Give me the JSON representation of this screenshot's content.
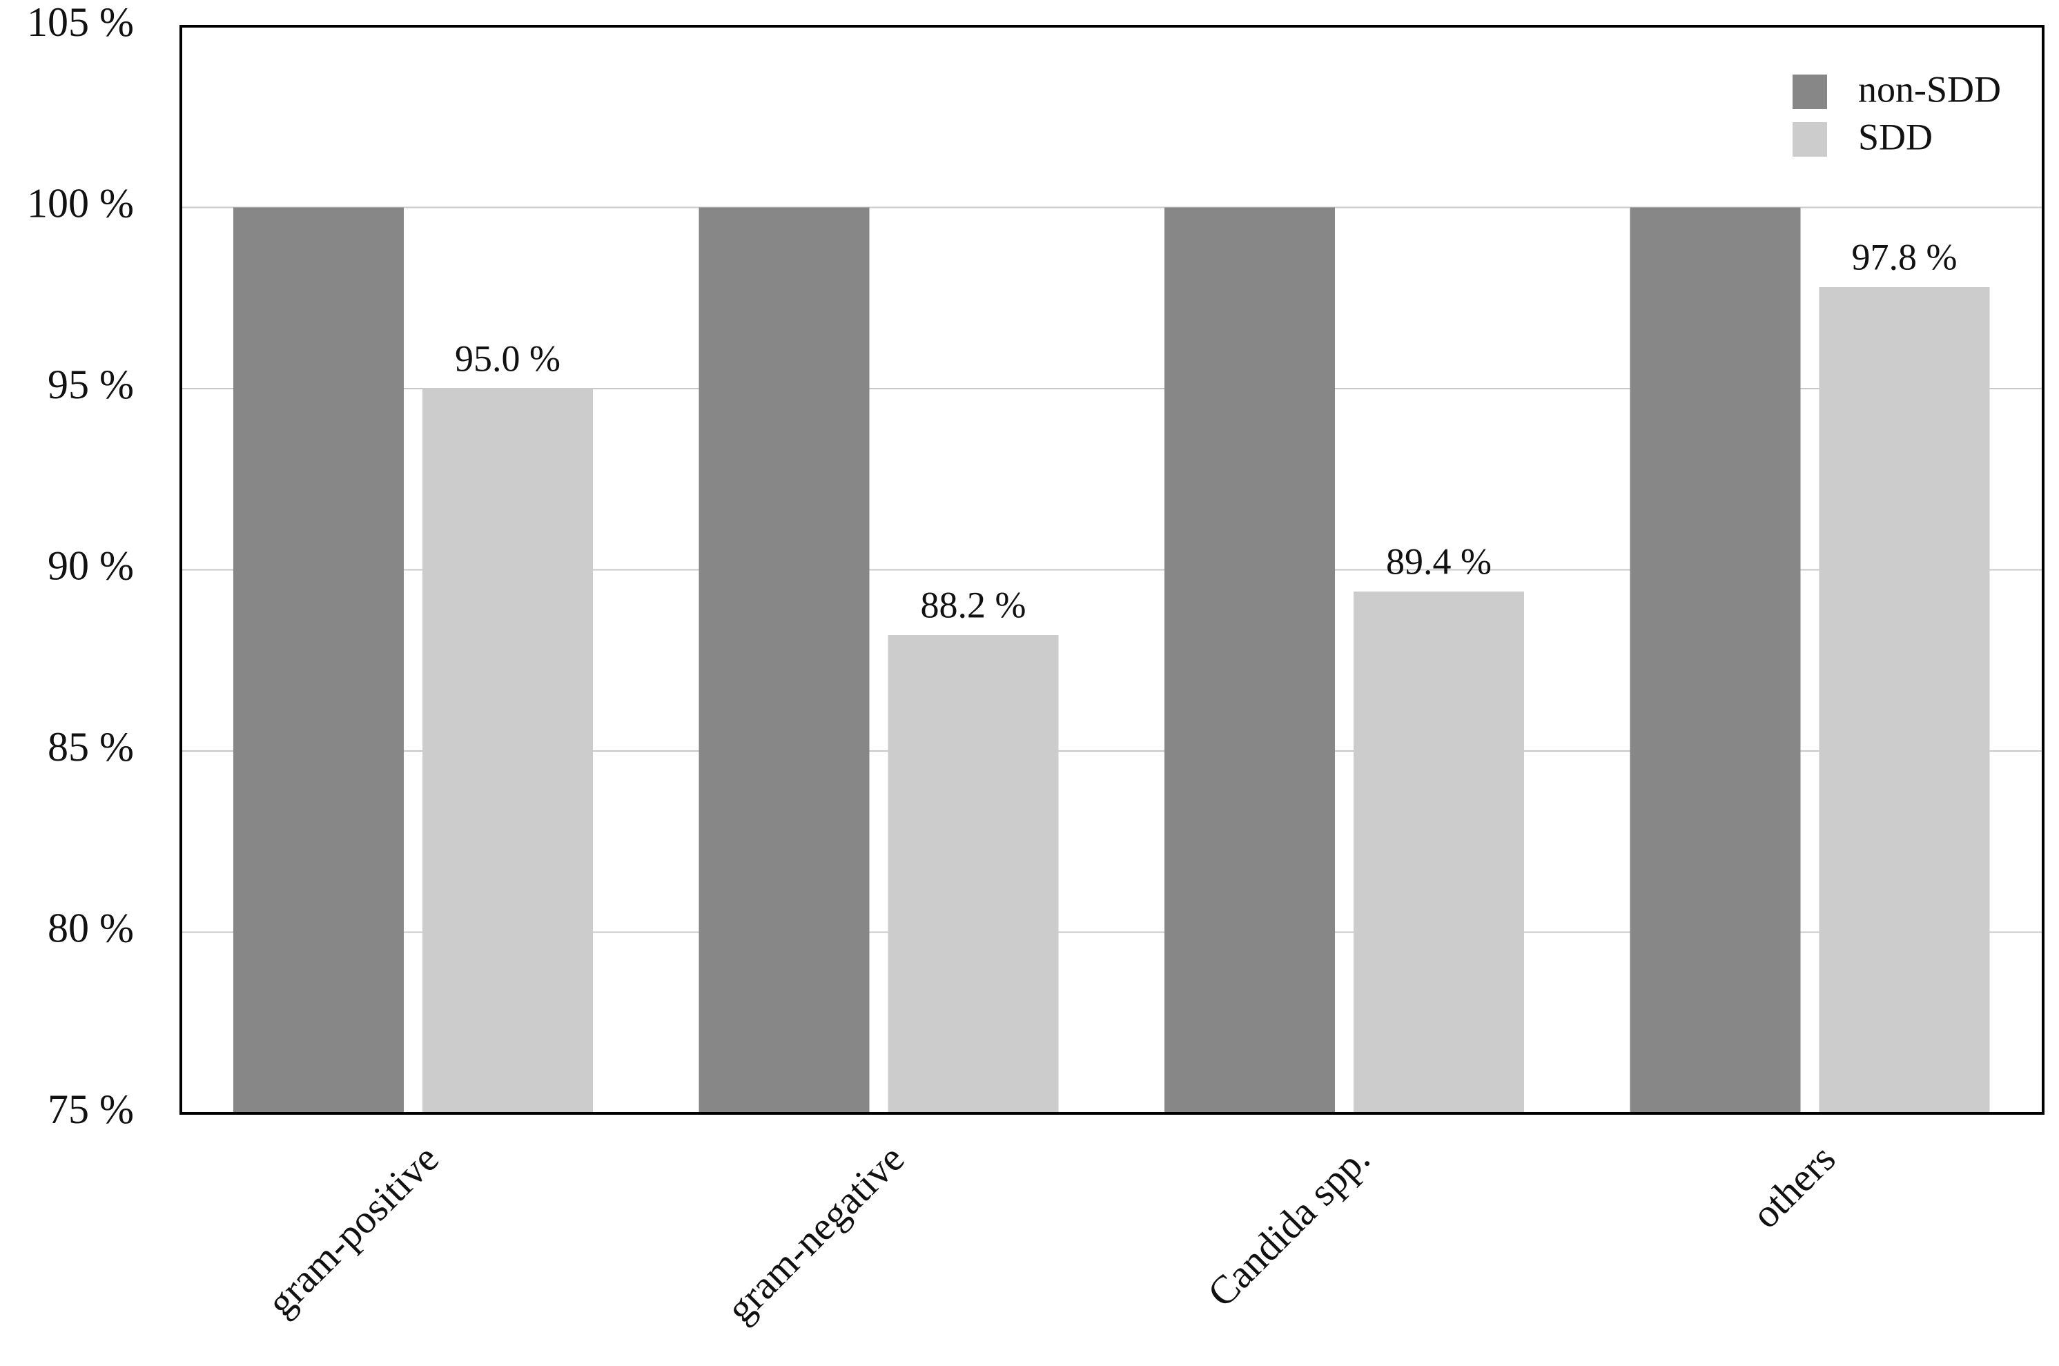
{
  "chart_data": {
    "type": "bar",
    "categories": [
      "gram-positive",
      "gram-negative",
      "Candida spp.",
      "others"
    ],
    "series": [
      {
        "name": "non-SDD",
        "color": "#878787",
        "values": [
          100,
          100,
          100,
          100
        ]
      },
      {
        "name": "SDD",
        "color": "#cccccc",
        "values": [
          95.0,
          88.2,
          89.4,
          97.8
        ],
        "value_labels": [
          "95.0 %",
          "88.2 %",
          "89.4 %",
          "97.8 %"
        ]
      }
    ],
    "ylim": [
      75,
      105
    ],
    "yticks": [
      {
        "value": 75,
        "label": "75 %"
      },
      {
        "value": 80,
        "label": "80 %"
      },
      {
        "value": 85,
        "label": "85 %"
      },
      {
        "value": 90,
        "label": "90 %"
      },
      {
        "value": 95,
        "label": "95 %"
      },
      {
        "value": 100,
        "label": "100 %"
      },
      {
        "value": 105,
        "label": "105 %"
      }
    ],
    "grid": true,
    "legend": "upper right"
  }
}
